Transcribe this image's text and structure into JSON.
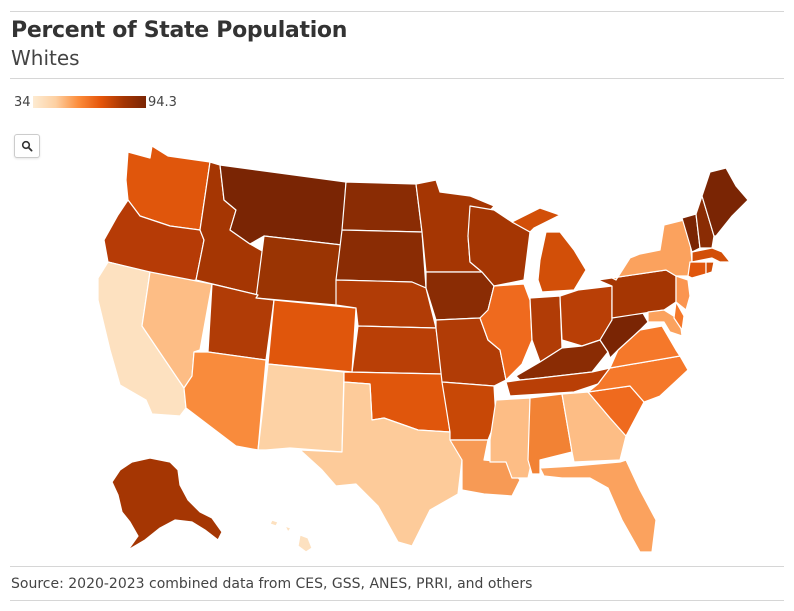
{
  "header": {
    "title": "Percent of State Population",
    "subtitle": "Whites"
  },
  "legend": {
    "min_label": "34",
    "max_label": "94.3",
    "colors": [
      "#fdebd2",
      "#fdd0a2",
      "#fc8d3c",
      "#e5550a",
      "#a53603",
      "#7a2504"
    ]
  },
  "controls": {
    "search_icon": "search-icon"
  },
  "map": {
    "states": {
      "WA": "#e0560c",
      "OR": "#b63b06",
      "CA": "#fde1c0",
      "NV": "#fdbd85",
      "ID": "#a53603",
      "MT": "#7a2504",
      "WY": "#9a3403",
      "UT": "#b13c06",
      "AZ": "#f98b3c",
      "NM": "#fdd2a5",
      "CO": "#e0560c",
      "ND": "#8a2c04",
      "SD": "#8a2c04",
      "NE": "#b13c06",
      "KS": "#b93f06",
      "OK": "#e0560c",
      "TX": "#fdcb9a",
      "MN": "#a53603",
      "IA": "#8a2c04",
      "MO": "#b13c06",
      "AR": "#c84806",
      "LA": "#f79a55",
      "WI": "#a53603",
      "IL": "#ef6a1e",
      "MI": "#d24f08",
      "IN": "#b13c06",
      "OH": "#b93f06",
      "KY": "#8a2c04",
      "TN": "#b93f06",
      "MS": "#fdbd85",
      "AL": "#f28234",
      "GA": "#fdbd85",
      "FL": "#fba25e",
      "SC": "#ef6a1e",
      "NC": "#f5782a",
      "VA": "#f5782a",
      "WV": "#7a2504",
      "PA": "#a53603",
      "NY": "#fba25e",
      "VT": "#7a2504",
      "NH": "#8a2c04",
      "ME": "#7a2504",
      "MA": "#d24f08",
      "CT": "#e0560c",
      "RI": "#d24f08",
      "NJ": "#fb9550",
      "DE": "#f5782a",
      "MD": "#fba25e",
      "AK": "#a53603",
      "HI": "#fde1c0"
    }
  },
  "source": "Source: 2020-2023 combined data from CES, GSS, ANES, PRRI, and others"
}
